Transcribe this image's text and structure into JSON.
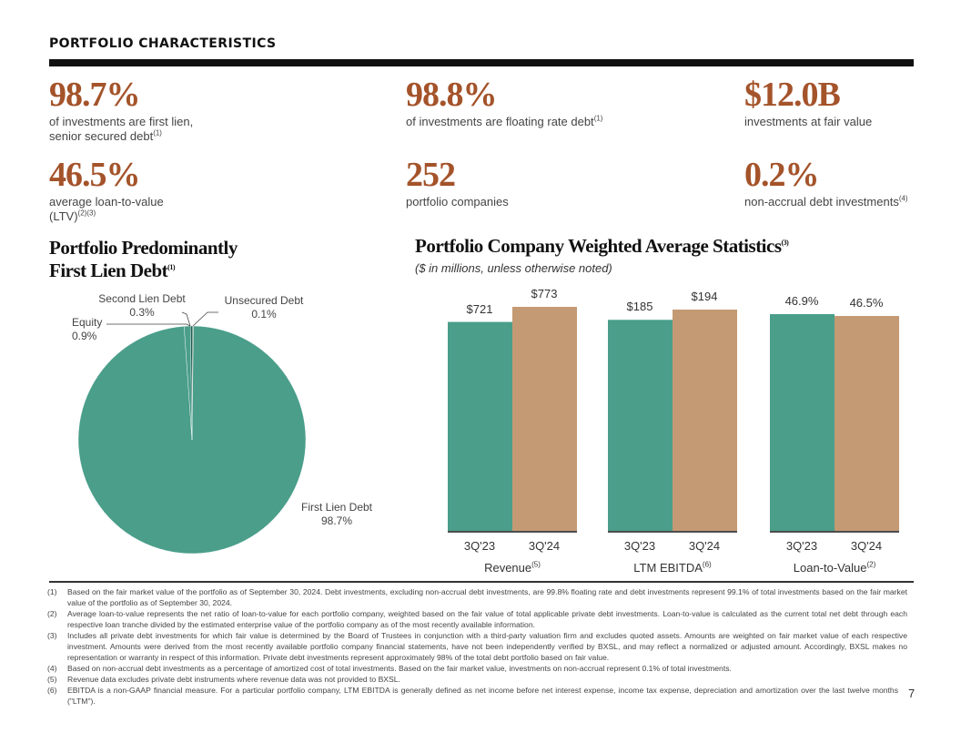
{
  "header": {
    "title": "PORTFOLIO CHARACTERISTICS"
  },
  "kpis": [
    {
      "value": "98.7%",
      "desc": "of investments are first lien,",
      "desc2": "senior secured debt",
      "note": "(1)"
    },
    {
      "value": "98.8%",
      "desc": "of investments are floating rate debt",
      "note": "(1)"
    },
    {
      "value": "$12.0B",
      "desc": "investments at fair value"
    },
    {
      "value": "46.5%",
      "desc": "average loan-to-value",
      "desc2": "(LTV)",
      "note": "(2)(3)"
    },
    {
      "value": "252",
      "desc": "portfolio companies"
    },
    {
      "value": "0.2%",
      "desc": "non-accrual debt investments",
      "note": "(4)"
    }
  ],
  "pie_section": {
    "title_line1": "Portfolio Predominantly",
    "title_line2": "First Lien Debt",
    "note": "(1)"
  },
  "bar_section": {
    "title": "Portfolio Company Weighted Average Statistics",
    "note": "(3)",
    "subtitle": "($ in millions, unless otherwise noted)"
  },
  "colors": {
    "accent": "#a4532a",
    "teal": "#4a9e8a",
    "tan": "#c49a74",
    "dark_teal": "#1d5c52",
    "unsecured": "#c8b89a"
  },
  "chart_data": [
    {
      "type": "pie",
      "title": "Portfolio Predominantly First Lien Debt",
      "slices": [
        {
          "label": "First Lien Debt",
          "value": 98.7,
          "display": "98.7%",
          "color": "#4a9e8a"
        },
        {
          "label": "Equity",
          "value": 0.9,
          "display": "0.9%",
          "color": "#4a9e8a"
        },
        {
          "label": "Second Lien Debt",
          "value": 0.3,
          "display": "0.3%",
          "color": "#1d5c52"
        },
        {
          "label": "Unsecured Debt",
          "value": 0.1,
          "display": "0.1%",
          "color": "#c8b89a"
        }
      ]
    },
    {
      "type": "bar",
      "title": "Portfolio Company Weighted Average Statistics",
      "subtitle": "($ in millions, unless otherwise noted)",
      "groups": [
        {
          "label": "Revenue",
          "note": "(5)",
          "categories": [
            "3Q'23",
            "3Q'24"
          ],
          "values": [
            721,
            773
          ],
          "display": [
            "$721",
            "$773"
          ]
        },
        {
          "label": "LTM EBITDA",
          "note": "(6)",
          "categories": [
            "3Q'23",
            "3Q'24"
          ],
          "values": [
            185,
            194
          ],
          "display": [
            "$185",
            "$194"
          ]
        },
        {
          "label": "Loan-to-Value",
          "note": "(2)",
          "categories": [
            "3Q'23",
            "3Q'24"
          ],
          "values": [
            46.9,
            46.5
          ],
          "display": [
            "46.9%",
            "46.5%"
          ]
        }
      ],
      "series": [
        {
          "name": "3Q'23",
          "color": "#4a9e8a"
        },
        {
          "name": "3Q'24",
          "color": "#c49a74"
        }
      ],
      "grid": false
    }
  ],
  "footnotes": [
    {
      "num": "(1)",
      "text": "Based on the fair market value of the portfolio as of September 30, 2024. Debt investments, excluding non-accrual debt investments, are 99.8% floating rate and debt investments represent 99.1% of total investments based on the fair market value of the portfolio as of September 30, 2024."
    },
    {
      "num": "(2)",
      "text": "Average loan-to-value represents the net ratio of loan-to-value for each portfolio company, weighted based on the fair value of total applicable private debt investments. Loan-to-value is calculated as the current total net debt through each respective loan tranche divided by the estimated enterprise value of the portfolio company as of the most recently available information."
    },
    {
      "num": "(3)",
      "text": "Includes all private debt investments for which fair value is determined by the Board of Trustees in conjunction with a third-party valuation firm and excludes quoted assets. Amounts are weighted on fair market value of each respective investment. Amounts were derived from the most recently available portfolio company financial statements, have not been independently verified by BXSL, and may reflect a normalized or adjusted amount. Accordingly, BXSL makes no representation or warranty in respect of this information. Private debt investments represent approximately 98% of the total debt portfolio based on fair value."
    },
    {
      "num": "(4)",
      "text": "Based on non-accrual debt investments as a percentage of amortized cost of total investments. Based on the fair market value, investments on non-accrual represent 0.1% of total investments."
    },
    {
      "num": "(5)",
      "text": "Revenue data excludes private debt instruments where revenue data was not provided to BXSL."
    },
    {
      "num": "(6)",
      "text": "EBITDA is a non-GAAP financial measure. For a particular portfolio company, LTM EBITDA is generally defined as net income before net interest expense, income tax expense, depreciation and amortization over the last twelve months (\"LTM\")."
    }
  ],
  "page_number": "7"
}
